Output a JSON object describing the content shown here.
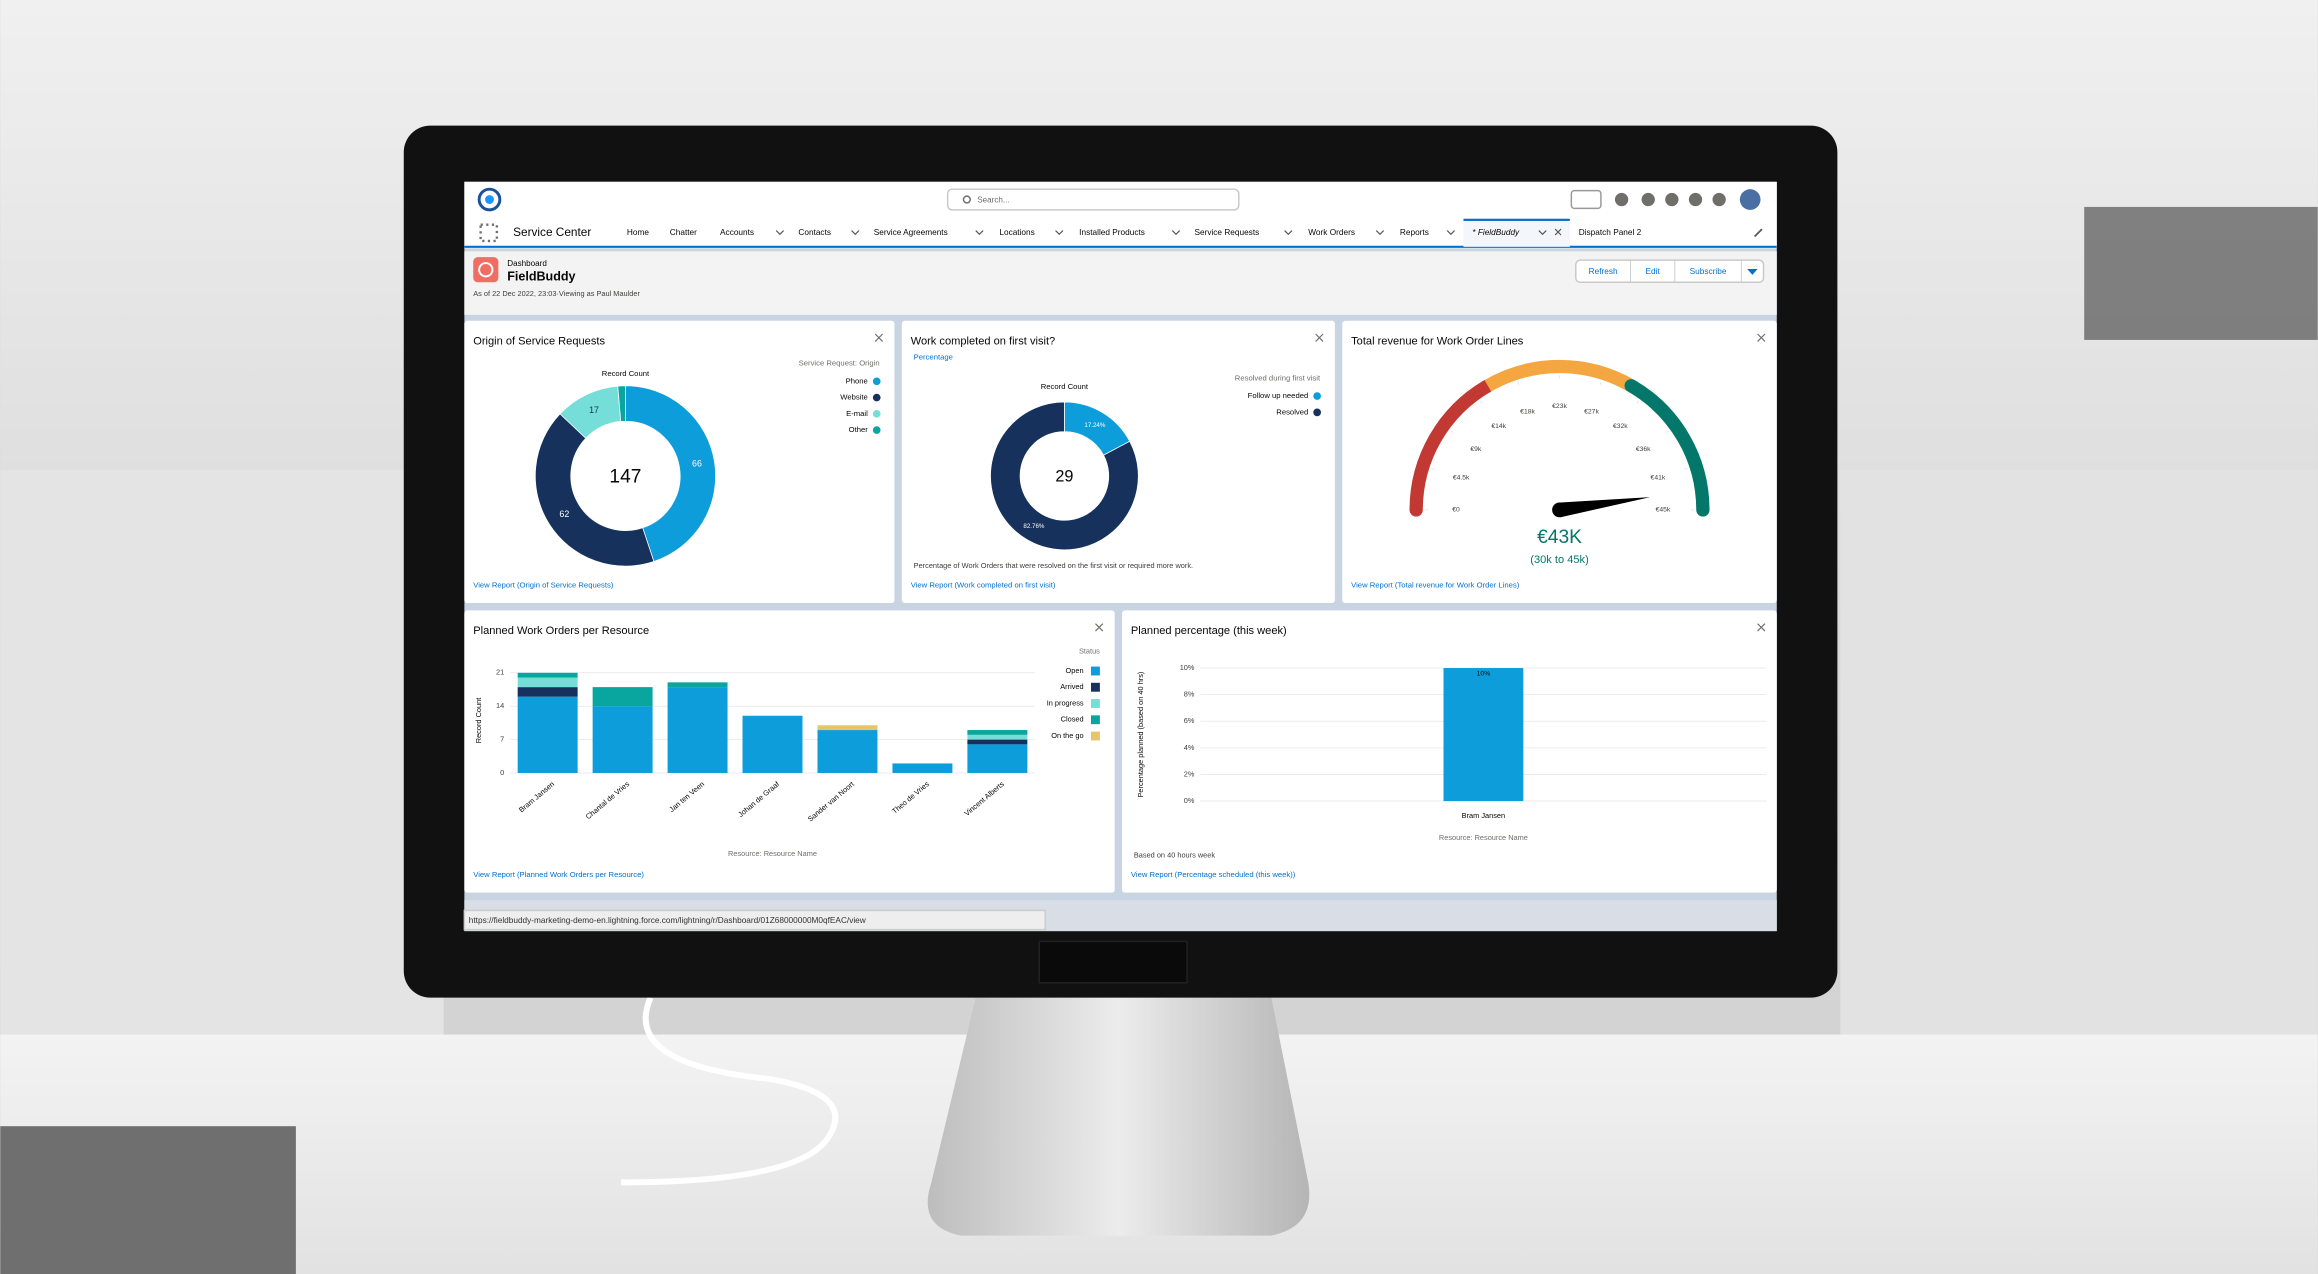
{
  "header": {
    "search_placeholder": "Search...",
    "app_name": "Service Center",
    "nav": [
      "Home",
      "Chatter",
      "Accounts",
      "Contacts",
      "Service Agreements",
      "Locations",
      "Installed Products",
      "Service Requests",
      "Work Orders",
      "Reports"
    ],
    "tabs": [
      "* FieldBuddy",
      "Dispatch Panel 2"
    ]
  },
  "dashboard": {
    "label": "Dashboard",
    "title": "FieldBuddy",
    "meta": "As of 22 Dec 2022, 23:03·Viewing as Paul Maulder",
    "buttons": [
      "Refresh",
      "Edit",
      "Subscribe"
    ]
  },
  "widgets": [
    {
      "title": "Origin of Service Requests",
      "link": "View Report (Origin of Service Requests)",
      "chart": {
        "type": "donut",
        "measure_label": "Record Count",
        "center_value": 147,
        "legend_title": "Service Request: Origin",
        "categories": [
          "Phone",
          "Website",
          "E-mail",
          "Other"
        ],
        "values": [
          66,
          62,
          17,
          2
        ],
        "value_labels": [
          "66",
          "62",
          "17",
          null
        ],
        "colors": [
          "#0d9dda",
          "#16325c",
          "#76ded9",
          "#08a69e"
        ]
      }
    },
    {
      "title": "Work completed on first visit?",
      "subtitle": "Percentage",
      "footnote": "Percentage of Work Orders that were resolved on the first visit or required more work.",
      "link": "View Report (Work completed on first visit)",
      "chart": {
        "type": "donut",
        "measure_label": "Record Count",
        "center_value": 29,
        "legend_title": "Resolved during first visit",
        "categories": [
          "Follow up needed",
          "Resolved"
        ],
        "values": [
          17.24,
          82.76
        ],
        "value_labels": [
          "17.24%",
          "82.76%"
        ],
        "colors": [
          "#0d9dda",
          "#16325c"
        ]
      }
    },
    {
      "title": "Total revenue for Work Order Lines",
      "link": "View Report (Total revenue for Work Order Lines)",
      "chart": {
        "type": "gauge",
        "range": [
          0,
          45000
        ],
        "ticks": [
          {
            "value": 0,
            "label": "€0"
          },
          {
            "value": 4500,
            "label": "€4.5k"
          },
          {
            "value": 9000,
            "label": "€9k"
          },
          {
            "value": 13500,
            "label": "€14k"
          },
          {
            "value": 18000,
            "label": "€18k"
          },
          {
            "value": 22500,
            "label": "€23k"
          },
          {
            "value": 27000,
            "label": "€27k"
          },
          {
            "value": 31500,
            "label": "€32k"
          },
          {
            "value": 36000,
            "label": "€36k"
          },
          {
            "value": 40500,
            "label": "€41k"
          },
          {
            "value": 45000,
            "label": "€45k"
          }
        ],
        "bands": [
          0,
          15000,
          30000,
          45000
        ],
        "band_colors": [
          "#c23934",
          "#f4a640",
          "#04776b"
        ],
        "value": 43000,
        "value_label": "€43K",
        "range_label": "(30k to 45k)",
        "value_color": "#04776b"
      }
    },
    {
      "title": "Planned Work Orders per Resource",
      "link": "View Report (Planned Work Orders per Resource)",
      "chart": {
        "type": "stacked_bar",
        "y_label": "Record Count",
        "x_label": "Resource: Resource Name",
        "legend_title": "Status",
        "categories": [
          "Bram Jansen",
          "Chantal de Vries",
          "Jan ten Veen",
          "Johan de Graaf",
          "Sander van Noort",
          "Theo de Vries",
          "Vincent Alberts"
        ],
        "series": [
          {
            "name": "Open",
            "color": "#0d9dda",
            "values": [
              16,
              14,
              18,
              12,
              9,
              2,
              6
            ]
          },
          {
            "name": "Arrived",
            "color": "#16325c",
            "values": [
              2,
              0,
              0,
              0,
              0,
              0,
              1
            ]
          },
          {
            "name": "In progress",
            "color": "#76ded9",
            "values": [
              2,
              0,
              0,
              0,
              0,
              0,
              1
            ]
          },
          {
            "name": "Closed",
            "color": "#08a69e",
            "values": [
              1,
              4,
              1,
              0,
              0,
              0,
              1
            ]
          },
          {
            "name": "On the go",
            "color": "#e8c46b",
            "values": [
              0,
              0,
              0,
              0,
              1,
              0,
              0
            ]
          }
        ],
        "ylim": [
          0,
          22
        ],
        "yticks": [
          0,
          7,
          14,
          21
        ],
        "grid": true
      }
    },
    {
      "title": "Planned percentage (this week)",
      "footnote": "Based on 40 hours week",
      "link": "View Report (Percentage scheduled (this week))",
      "chart": {
        "type": "bar",
        "y_label": "Percentage planned (based on 40 hrs)",
        "x_label": "Resource: Resource Name",
        "categories": [
          "Bram Jansen"
        ],
        "values": [
          10
        ],
        "value_labels": [
          "10%"
        ],
        "color": "#0d9dda",
        "ylim": [
          0,
          10
        ],
        "yticks": [
          {
            "value": 0,
            "label": "0%"
          },
          {
            "value": 2,
            "label": "2%"
          },
          {
            "value": 4,
            "label": "4%"
          },
          {
            "value": 6,
            "label": "6%"
          },
          {
            "value": 8,
            "label": "8%"
          },
          {
            "value": 10,
            "label": "10%"
          }
        ],
        "grid": true
      }
    }
  ],
  "status_url": "https://fieldbuddy-marketing-demo-en.lightning.force.com/lightning/r/Dashboard/01Z68000000M0qfEAC/view"
}
